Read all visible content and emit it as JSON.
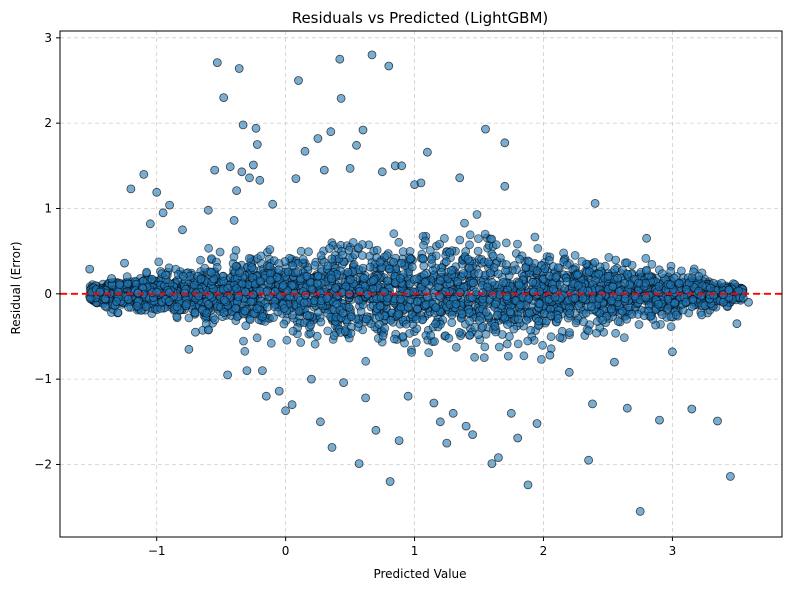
{
  "chart_data": {
    "type": "scatter",
    "title": "Residuals vs Predicted (LightGBM)",
    "xlabel": "Predicted Value",
    "ylabel": "Residual (Error)",
    "xlim": [
      -1.75,
      3.85
    ],
    "ylim": [
      -2.85,
      3.08
    ],
    "x_ticks": [
      -1,
      0,
      1,
      2,
      3
    ],
    "y_ticks": [
      -2,
      -1,
      0,
      1,
      2,
      3
    ],
    "x_tick_labels": [
      "−1",
      "0",
      "1",
      "2",
      "3"
    ],
    "y_tick_labels": [
      "−2",
      "−1",
      "0",
      "1",
      "2",
      "3"
    ],
    "grid": true,
    "reference_line": {
      "y": 0,
      "color": "#ff0000",
      "style": "dashed"
    },
    "marker": {
      "color": "#1f77b4",
      "edgecolor": "#000000",
      "alpha": 0.6
    },
    "series": [
      {
        "points": [
          [
            -1.52,
            0.29
          ],
          [
            -1.47,
            0.05
          ],
          [
            -1.44,
            0.02
          ],
          [
            -1.4,
            -0.06
          ],
          [
            -1.35,
            0.18
          ],
          [
            -1.3,
            -0.22
          ],
          [
            -1.25,
            0.36
          ],
          [
            -1.2,
            1.23
          ],
          [
            -1.1,
            1.4
          ],
          [
            -1.05,
            0.82
          ],
          [
            -1.0,
            1.19
          ],
          [
            -0.95,
            0.95
          ],
          [
            -0.9,
            1.04
          ],
          [
            -0.8,
            0.75
          ],
          [
            -0.75,
            -0.65
          ],
          [
            -0.7,
            -0.45
          ],
          [
            -0.6,
            0.98
          ],
          [
            -0.55,
            1.45
          ],
          [
            -0.53,
            2.71
          ],
          [
            -0.48,
            2.3
          ],
          [
            -0.45,
            -0.95
          ],
          [
            -0.43,
            1.49
          ],
          [
            -0.4,
            0.86
          ],
          [
            -0.38,
            1.21
          ],
          [
            -0.36,
            2.64
          ],
          [
            -0.34,
            1.43
          ],
          [
            -0.33,
            1.98
          ],
          [
            -0.3,
            -0.9
          ],
          [
            -0.28,
            1.36
          ],
          [
            -0.25,
            1.51
          ],
          [
            -0.23,
            1.94
          ],
          [
            -0.22,
            1.75
          ],
          [
            -0.2,
            1.33
          ],
          [
            -0.18,
            -0.9
          ],
          [
            -0.15,
            -1.2
          ],
          [
            -0.1,
            1.05
          ],
          [
            -0.05,
            -1.14
          ],
          [
            0.0,
            -1.37
          ],
          [
            0.05,
            -1.3
          ],
          [
            0.08,
            1.35
          ],
          [
            0.1,
            2.5
          ],
          [
            0.15,
            1.67
          ],
          [
            0.2,
            -1.0
          ],
          [
            0.25,
            1.82
          ],
          [
            0.27,
            -1.5
          ],
          [
            0.3,
            1.45
          ],
          [
            0.35,
            1.9
          ],
          [
            0.36,
            -1.8
          ],
          [
            0.42,
            2.75
          ],
          [
            0.43,
            2.29
          ],
          [
            0.45,
            -1.04
          ],
          [
            0.5,
            1.47
          ],
          [
            0.55,
            1.74
          ],
          [
            0.57,
            -1.99
          ],
          [
            0.6,
            1.92
          ],
          [
            0.62,
            -1.22
          ],
          [
            0.67,
            2.8
          ],
          [
            0.7,
            -1.6
          ],
          [
            0.75,
            1.43
          ],
          [
            0.8,
            2.67
          ],
          [
            0.81,
            -2.2
          ],
          [
            0.85,
            1.5
          ],
          [
            0.88,
            -1.72
          ],
          [
            0.9,
            1.5
          ],
          [
            0.95,
            -1.2
          ],
          [
            1.0,
            1.28
          ],
          [
            1.05,
            1.3
          ],
          [
            1.1,
            1.66
          ],
          [
            1.15,
            -1.28
          ],
          [
            1.2,
            -1.5
          ],
          [
            1.25,
            -1.75
          ],
          [
            1.3,
            -1.4
          ],
          [
            1.35,
            1.36
          ],
          [
            1.4,
            -1.55
          ],
          [
            1.45,
            -1.65
          ],
          [
            1.55,
            1.93
          ],
          [
            1.6,
            -1.99
          ],
          [
            1.65,
            -1.92
          ],
          [
            1.7,
            1.77
          ],
          [
            1.7,
            1.26
          ],
          [
            1.75,
            -1.4
          ],
          [
            1.8,
            -1.69
          ],
          [
            1.88,
            -2.24
          ],
          [
            1.95,
            -1.52
          ],
          [
            2.05,
            -0.72
          ],
          [
            2.2,
            -0.92
          ],
          [
            2.35,
            -1.95
          ],
          [
            2.38,
            -1.29
          ],
          [
            2.4,
            1.06
          ],
          [
            2.55,
            -0.8
          ],
          [
            2.65,
            -1.34
          ],
          [
            2.75,
            -2.55
          ],
          [
            2.8,
            0.65
          ],
          [
            2.9,
            -1.48
          ],
          [
            3.0,
            -0.68
          ],
          [
            3.15,
            -1.35
          ],
          [
            3.35,
            -1.49
          ],
          [
            3.45,
            -2.14
          ],
          [
            3.5,
            -0.35
          ],
          [
            3.55,
            -0.05
          ],
          [
            3.59,
            -0.1
          ]
        ]
      }
    ]
  }
}
